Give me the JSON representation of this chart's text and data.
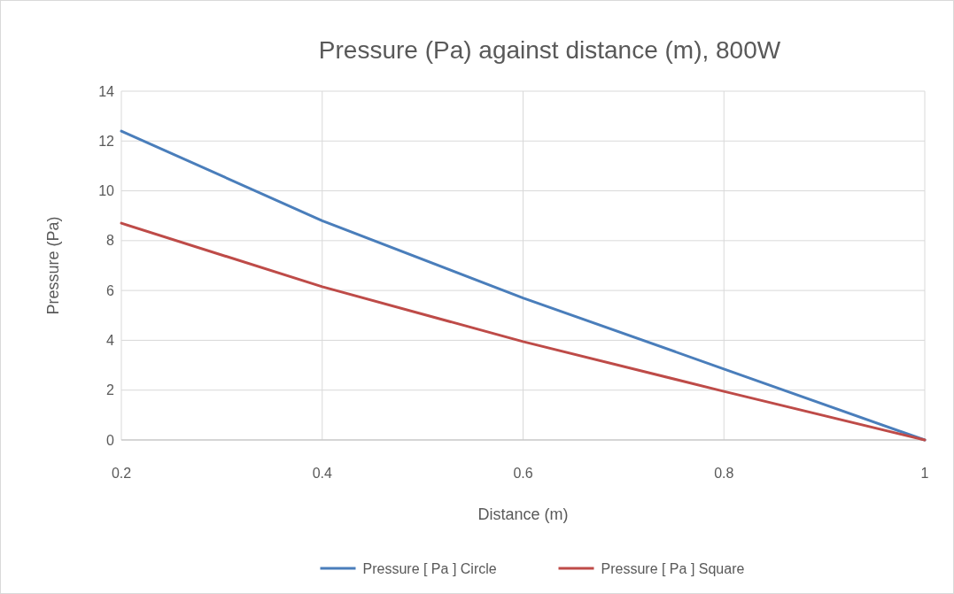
{
  "chart_data": {
    "type": "line",
    "title": "Pressure (Pa) against distance (m), 800W",
    "xlabel": "Distance (m)",
    "ylabel": "Pressure (Pa)",
    "x": [
      0.2,
      0.4,
      0.6,
      0.8,
      1
    ],
    "series": [
      {
        "name": "Pressure [ Pa ] Circle",
        "color": "#4a7ebb",
        "values": [
          12.4,
          8.8,
          5.7,
          2.85,
          0
        ]
      },
      {
        "name": "Pressure [ Pa ] Square",
        "color": "#be4b48",
        "values": [
          8.7,
          6.15,
          3.95,
          1.95,
          0
        ]
      }
    ],
    "xlim": [
      0.2,
      1
    ],
    "xticks": [
      0.2,
      0.4,
      0.6,
      0.8,
      1
    ],
    "ylim": [
      0,
      14
    ],
    "yticks": [
      0,
      2,
      4,
      6,
      8,
      10,
      12,
      14
    ],
    "grid": true,
    "legend": "bottom",
    "marker": "none",
    "line_style": "solid"
  }
}
